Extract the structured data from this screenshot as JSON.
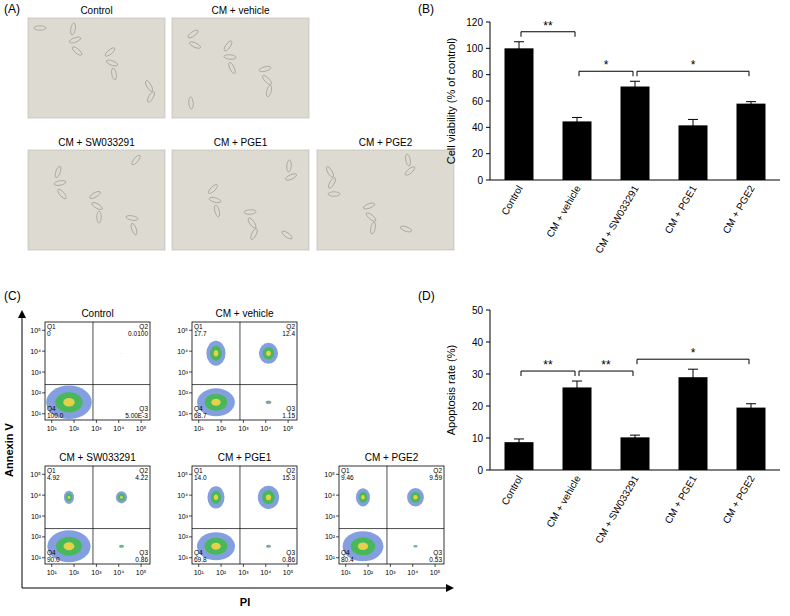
{
  "image_panel": {
    "title": "(A)",
    "images": [
      "Control",
      "CM + vehicle",
      "CM + SW033291",
      "CM + PGE1",
      "CM + PGE2"
    ]
  },
  "chart_data": [
    {
      "type": "bar",
      "title": "(B)",
      "y_label": "Cell viability (% of control)",
      "categories": [
        "Control",
        "CM + vehicle",
        "CM + SW033291",
        "CM + PGE1",
        "CM + PGE2"
      ],
      "values": [
        100,
        44.5,
        71,
        41.5,
        58
      ],
      "errors": [
        5,
        3,
        4,
        4.5,
        1.5
      ],
      "color": "#000000",
      "ylim": [
        0,
        120
      ],
      "yticks": [
        0,
        20,
        40,
        60,
        80,
        100,
        120
      ],
      "annotations": [
        {
          "from": 0,
          "to": 1,
          "text": "**"
        },
        {
          "from": 1,
          "to": 2,
          "text": "*"
        },
        {
          "from": 2,
          "to": 4,
          "text": "*"
        }
      ]
    },
    {
      "type": "flow_cytometry",
      "title": "(C)",
      "x_label": "PI",
      "y_label": "Annexin V",
      "log": true,
      "xlim": [
        5,
        250000
      ],
      "ylim": [
        5,
        250000
      ],
      "xticks": [
        {
          "value": 10,
          "label": "10¹"
        },
        {
          "value": 100,
          "label": "10²"
        },
        {
          "value": 1000,
          "label": "10³"
        },
        {
          "value": 10000,
          "label": "10⁴"
        },
        {
          "value": 100000,
          "label": "10⁵"
        }
      ],
      "yticks": [
        {
          "value": 10,
          "label": "10¹"
        },
        {
          "value": 100,
          "label": "10²"
        },
        {
          "value": 1000,
          "label": "10³"
        },
        {
          "value": 10000,
          "label": "10⁴"
        },
        {
          "value": 100000,
          "label": "10⁵"
        }
      ],
      "gate_x": 700,
      "gate_y": 250,
      "panels": [
        {
          "title": "Control",
          "categories": [
            "Q1",
            "Q2",
            "Q3",
            "Q4"
          ],
          "values": [
            0,
            0.01,
            0.005,
            100
          ],
          "value_labels": [
            "0",
            "0.0100",
            "5.00E-3",
            "100.0"
          ]
        },
        {
          "title": "CM + vehicle",
          "categories": [
            "Q1",
            "Q2",
            "Q3",
            "Q4"
          ],
          "values": [
            17.7,
            12.4,
            1.15,
            68.7
          ],
          "value_labels": [
            "17.7",
            "12.4",
            "1.15",
            "68.7"
          ]
        },
        {
          "title": "CM + SW033291",
          "categories": [
            "Q1",
            "Q2",
            "Q3",
            "Q4"
          ],
          "values": [
            4.92,
            4.22,
            0.86,
            90.0
          ],
          "value_labels": [
            "4.92",
            "4.22",
            "0.86",
            "90.0"
          ]
        },
        {
          "title": "CM + PGE1",
          "categories": [
            "Q1",
            "Q2",
            "Q3",
            "Q4"
          ],
          "values": [
            14.0,
            15.3,
            0.86,
            69.8
          ],
          "value_labels": [
            "14.0",
            "15.3",
            "0.86",
            "69.8"
          ]
        },
        {
          "title": "CM + PGE2",
          "categories": [
            "Q1",
            "Q2",
            "Q3",
            "Q4"
          ],
          "values": [
            9.46,
            9.59,
            0.53,
            80.4
          ],
          "value_labels": [
            "9.46",
            "9.59",
            "0.53",
            "80.4"
          ]
        }
      ]
    },
    {
      "type": "bar",
      "title": "(D)",
      "y_label": "Apoptosis rate (%)",
      "categories": [
        "Control",
        "CM + vehicle",
        "CM + SW033291",
        "CM + PGE1",
        "CM + PGE2"
      ],
      "values": [
        8.7,
        25.8,
        10.2,
        29,
        19.5
      ],
      "errors": [
        1,
        2,
        0.7,
        2.5,
        1.2
      ],
      "color": "#000000",
      "ylim": [
        0,
        50
      ],
      "yticks": [
        0,
        10,
        20,
        30,
        40,
        50
      ],
      "annotations": [
        {
          "from": 0,
          "to": 1,
          "text": "**"
        },
        {
          "from": 1,
          "to": 2,
          "text": "**"
        },
        {
          "from": 2,
          "to": 4,
          "text": "*"
        }
      ]
    }
  ]
}
